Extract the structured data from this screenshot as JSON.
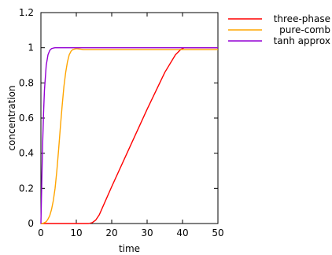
{
  "chart_data": {
    "type": "line",
    "title": "",
    "xlabel": "time",
    "ylabel": "concentration",
    "xlim": [
      0,
      50
    ],
    "ylim": [
      0,
      1.2
    ],
    "xticks": [
      0,
      10,
      20,
      30,
      40,
      50
    ],
    "yticks": [
      0,
      0.2,
      0.4,
      0.6,
      0.8,
      1,
      1.2
    ],
    "xtick_labels": [
      "0",
      "10",
      "20",
      "30",
      "40",
      "50"
    ],
    "ytick_labels": [
      "0",
      "0.2",
      "0.4",
      "0.6",
      "0.8",
      "1",
      "1.2"
    ],
    "grid": false,
    "legend_position": "outside-top-right",
    "series": [
      {
        "name": "three-phase",
        "color": "#ff0000",
        "x": [
          0,
          13.5,
          14.5,
          15.5,
          16.5,
          20,
          25,
          30,
          35,
          38,
          39.5,
          40.5,
          42,
          50
        ],
        "y": [
          0,
          0,
          0.005,
          0.02,
          0.05,
          0.21,
          0.43,
          0.65,
          0.86,
          0.96,
          0.99,
          1.0,
          1.0,
          1.0
        ]
      },
      {
        "name": "pure-comb",
        "color": "#ffa500",
        "x": [
          0,
          0.5,
          1,
          1.5,
          2,
          2.5,
          3,
          3.5,
          4,
          4.5,
          5,
          5.5,
          6,
          6.5,
          7,
          7.5,
          8,
          8.5,
          9,
          10,
          12,
          50
        ],
        "y": [
          0,
          0.0,
          0.005,
          0.01,
          0.025,
          0.045,
          0.08,
          0.13,
          0.2,
          0.3,
          0.42,
          0.55,
          0.67,
          0.78,
          0.86,
          0.92,
          0.96,
          0.98,
          0.99,
          0.995,
          0.99,
          0.99
        ]
      },
      {
        "name": "tanh approx",
        "color": "#9400d3",
        "x": [
          0,
          0.25,
          0.5,
          0.75,
          1,
          1.5,
          2,
          2.5,
          3,
          3.5,
          4,
          5,
          6,
          8,
          50
        ],
        "y": [
          0,
          0.24,
          0.46,
          0.63,
          0.76,
          0.9,
          0.96,
          0.985,
          0.995,
          0.998,
          1.0,
          1.0,
          1.0,
          1.0,
          1.0
        ]
      }
    ]
  }
}
